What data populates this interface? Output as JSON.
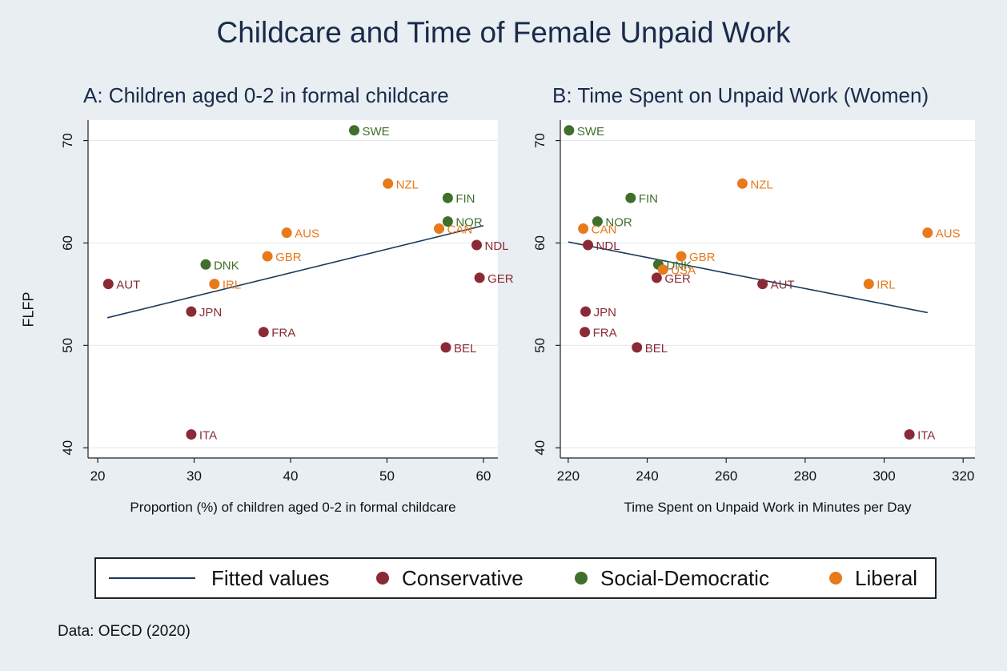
{
  "title": "Childcare and Time of Female Unpaid Work",
  "colors": {
    "Conservative": "#8b2a36",
    "Social-Democratic": "#3f6f2a",
    "Liberal": "#e87a1c",
    "fit": "#1a3a5c",
    "grid": "#e4eaee",
    "panel_bg": "#ffffff",
    "page_bg": "#e8eef1"
  },
  "legend": {
    "fitted_label": "Fitted values",
    "conservative_label": "Conservative",
    "socdem_label": "Social-Democratic",
    "liberal_label": "Liberal"
  },
  "note": "Data: OECD (2020)",
  "chart_data": [
    {
      "type": "scatter",
      "title": "A: Children aged 0-2 in formal childcare",
      "xlabel": "Proportion (%) of children aged 0-2 in formal childcare",
      "ylabel": "FLFP",
      "xlim": [
        19,
        61.5
      ],
      "ylim": [
        39,
        72
      ],
      "xticks": [
        20,
        30,
        40,
        50,
        60
      ],
      "yticks": [
        40,
        50,
        60,
        70
      ],
      "grid": true,
      "fit_line": [
        [
          21,
          52.7
        ],
        [
          60,
          61.7
        ]
      ],
      "points": [
        {
          "label": "SWE",
          "x": 46.6,
          "y": 71.0,
          "group": "Social-Democratic"
        },
        {
          "label": "NZL",
          "x": 50.1,
          "y": 65.8,
          "group": "Liberal"
        },
        {
          "label": "FIN",
          "x": 56.3,
          "y": 64.4,
          "group": "Social-Democratic"
        },
        {
          "label": "NOR",
          "x": 56.3,
          "y": 62.1,
          "group": "Social-Democratic"
        },
        {
          "label": "CAN",
          "x": 55.4,
          "y": 61.4,
          "group": "Liberal"
        },
        {
          "label": "AUS",
          "x": 39.6,
          "y": 61.0,
          "group": "Liberal"
        },
        {
          "label": "NDL",
          "x": 59.3,
          "y": 59.8,
          "group": "Conservative"
        },
        {
          "label": "GBR",
          "x": 37.6,
          "y": 58.7,
          "group": "Liberal"
        },
        {
          "label": "DNK",
          "x": 31.2,
          "y": 57.9,
          "group": "Social-Democratic"
        },
        {
          "label": "GER",
          "x": 59.6,
          "y": 56.6,
          "group": "Conservative"
        },
        {
          "label": "AUT",
          "x": 21.1,
          "y": 56.0,
          "group": "Conservative"
        },
        {
          "label": "IRL",
          "x": 32.1,
          "y": 56.0,
          "group": "Liberal"
        },
        {
          "label": "JPN",
          "x": 29.7,
          "y": 53.3,
          "group": "Conservative"
        },
        {
          "label": "FRA",
          "x": 37.2,
          "y": 51.3,
          "group": "Conservative"
        },
        {
          "label": "BEL",
          "x": 56.1,
          "y": 49.8,
          "group": "Conservative"
        },
        {
          "label": "ITA",
          "x": 29.7,
          "y": 41.3,
          "group": "Conservative"
        }
      ]
    },
    {
      "type": "scatter",
      "title": "B: Time Spent on Unpaid Work (Women)",
      "xlabel": "Time Spent on Unpaid Work in Minutes per Day",
      "ylabel": "",
      "xlim": [
        218,
        323
      ],
      "ylim": [
        39,
        72
      ],
      "xticks": [
        220,
        240,
        260,
        280,
        300,
        320
      ],
      "yticks": [
        40,
        50,
        60,
        70
      ],
      "grid": true,
      "fit_line": [
        [
          220,
          60.1
        ],
        [
          311,
          53.2
        ]
      ],
      "points": [
        {
          "label": "SWE",
          "x": 220.2,
          "y": 71.0,
          "group": "Social-Democratic"
        },
        {
          "label": "NZL",
          "x": 264.1,
          "y": 65.8,
          "group": "Liberal"
        },
        {
          "label": "FIN",
          "x": 235.8,
          "y": 64.4,
          "group": "Social-Democratic"
        },
        {
          "label": "NOR",
          "x": 227.4,
          "y": 62.1,
          "group": "Social-Democratic"
        },
        {
          "label": "CAN",
          "x": 223.8,
          "y": 61.4,
          "group": "Liberal"
        },
        {
          "label": "AUS",
          "x": 311.0,
          "y": 61.0,
          "group": "Liberal"
        },
        {
          "label": "NDL",
          "x": 225.0,
          "y": 59.8,
          "group": "Conservative"
        },
        {
          "label": "GBR",
          "x": 248.6,
          "y": 58.7,
          "group": "Liberal"
        },
        {
          "label": "DNK",
          "x": 242.8,
          "y": 57.9,
          "group": "Social-Democratic"
        },
        {
          "label": "USA",
          "x": 244.0,
          "y": 57.4,
          "group": "Liberal"
        },
        {
          "label": "GER",
          "x": 242.4,
          "y": 56.6,
          "group": "Conservative"
        },
        {
          "label": "AUT",
          "x": 269.2,
          "y": 56.0,
          "group": "Conservative"
        },
        {
          "label": "IRL",
          "x": 296.1,
          "y": 56.0,
          "group": "Liberal"
        },
        {
          "label": "JPN",
          "x": 224.4,
          "y": 53.3,
          "group": "Conservative"
        },
        {
          "label": "FRA",
          "x": 224.2,
          "y": 51.3,
          "group": "Conservative"
        },
        {
          "label": "BEL",
          "x": 237.4,
          "y": 49.8,
          "group": "Conservative"
        },
        {
          "label": "ITA",
          "x": 306.4,
          "y": 41.3,
          "group": "Conservative"
        }
      ]
    }
  ]
}
